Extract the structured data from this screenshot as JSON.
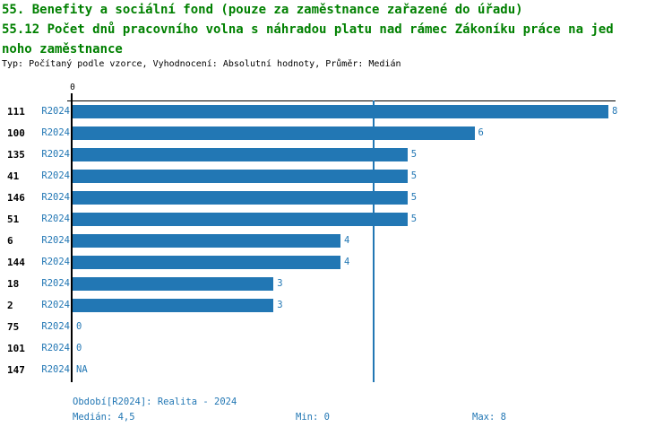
{
  "title": {
    "line1": "55. Benefity a sociální fond (pouze za zaměstnance zařazené do úřadu)",
    "line2": "55.12 Počet dnů pracovního volna s náhradou platu nad rámec Zákoníku práce na jed",
    "line3": "noho zaměstnance",
    "meta": "Typ: Počítaný podle vzorce, Vyhodnocení: Absolutní hodnoty, Průměr: Medián"
  },
  "colors": {
    "title_green": "#008000",
    "bar_blue": "#2277b4",
    "text_blue": "#2277b4",
    "axis_black": "#000000"
  },
  "chart_data": {
    "type": "bar",
    "orientation": "horizontal",
    "title": "",
    "xlabel": "",
    "ylabel": "",
    "xlim": [
      0,
      8
    ],
    "x_tick_labels": [
      "0"
    ],
    "grid": false,
    "median": 4.5,
    "median_line": true,
    "series_label": "R2024",
    "categories": [
      "111",
      "100",
      "135",
      "41",
      "146",
      "51",
      "6",
      "144",
      "18",
      "2",
      "75",
      "101",
      "147"
    ],
    "values": [
      8,
      6,
      5,
      5,
      5,
      5,
      4,
      4,
      3,
      3,
      0,
      0,
      null
    ],
    "value_labels": [
      "8",
      "6",
      "5",
      "5",
      "5",
      "5",
      "4",
      "4",
      "3",
      "3",
      "0",
      "0",
      "NA"
    ]
  },
  "footer": {
    "period": "Období[R2024]: Realita - 2024",
    "median": "Medián: 4,5",
    "min": "Min: 0",
    "max": "Max: 8"
  }
}
